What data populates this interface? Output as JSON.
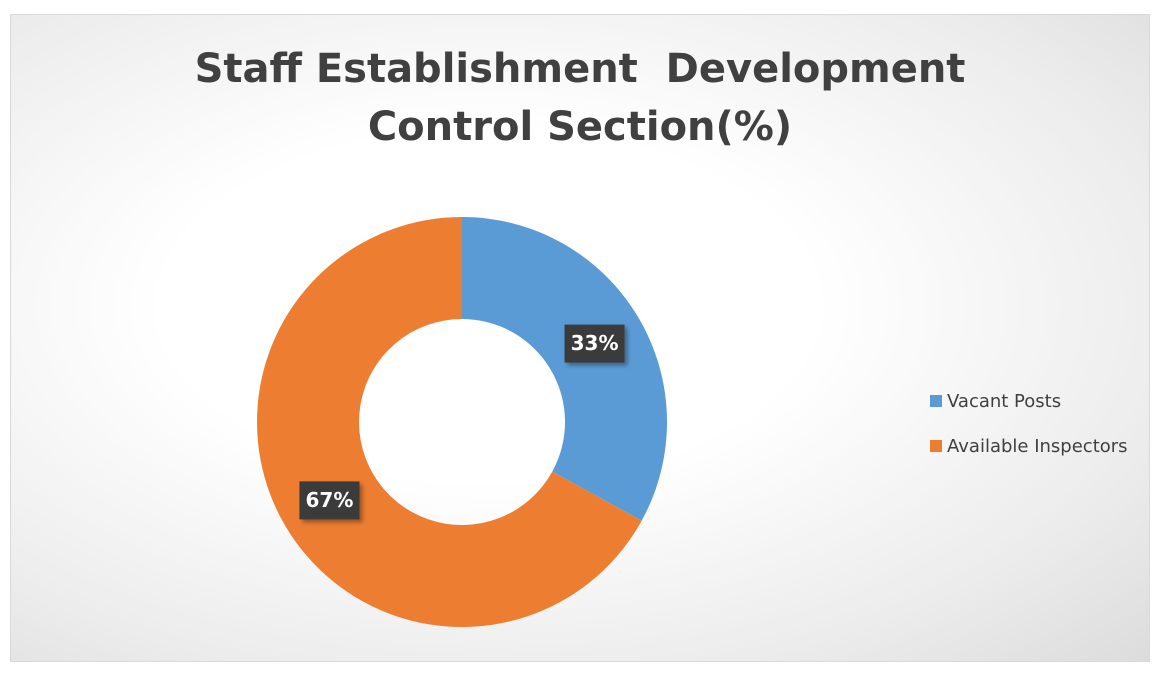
{
  "chart_data": {
    "type": "pie",
    "donut": true,
    "title": "Staff Establishment  Development Control Section(%)",
    "categories": [
      "Vacant Posts",
      "Available Inspectors"
    ],
    "values": [
      33,
      67
    ],
    "value_labels": [
      "33%",
      "67%"
    ],
    "colors": [
      "#5b9bd5",
      "#ed7d31"
    ],
    "legend": "right"
  }
}
